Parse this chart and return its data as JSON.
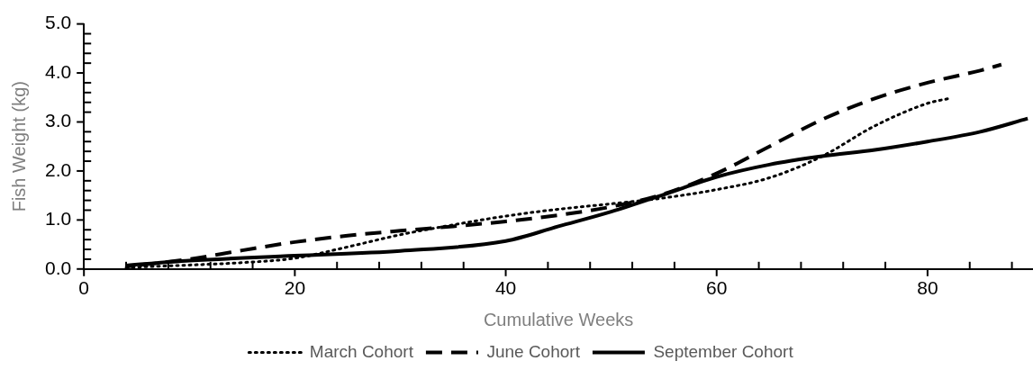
{
  "chart_data": {
    "type": "line",
    "xlabel": "Cumulative Weeks",
    "ylabel": "Fish Weight (kg)",
    "legend": "bottom",
    "grid": false,
    "marker": "none",
    "xlim": [
      0,
      90
    ],
    "ylim": [
      0,
      5
    ],
    "xticks": [
      0,
      {
        "value": 4,
        "label": null
      },
      {
        "value": 8,
        "label": null
      },
      {
        "value": 12,
        "label": null
      },
      {
        "value": 16,
        "label": null
      },
      20,
      {
        "value": 24,
        "label": null
      },
      {
        "value": 28,
        "label": null
      },
      {
        "value": 32,
        "label": null
      },
      {
        "value": 36,
        "label": null
      },
      40,
      {
        "value": 44,
        "label": null
      },
      {
        "value": 48,
        "label": null
      },
      {
        "value": 52,
        "label": null
      },
      {
        "value": 56,
        "label": null
      },
      60,
      {
        "value": 64,
        "label": null
      },
      {
        "value": 68,
        "label": null
      },
      {
        "value": 72,
        "label": null
      },
      {
        "value": 76,
        "label": null
      },
      80,
      {
        "value": 84,
        "label": null
      },
      {
        "value": 88,
        "label": null
      }
    ],
    "yticks": [
      {
        "value": 0,
        "label": "0.0"
      },
      {
        "value": 0.2,
        "label": null
      },
      {
        "value": 0.4,
        "label": null
      },
      {
        "value": 0.6,
        "label": null
      },
      {
        "value": 0.8,
        "label": null
      },
      {
        "value": 1,
        "label": "1.0"
      },
      {
        "value": 1.2,
        "label": null
      },
      {
        "value": 1.4,
        "label": null
      },
      {
        "value": 1.6,
        "label": null
      },
      {
        "value": 1.8,
        "label": null
      },
      {
        "value": 2,
        "label": "2.0"
      },
      {
        "value": 2.2,
        "label": null
      },
      {
        "value": 2.4,
        "label": null
      },
      {
        "value": 2.6,
        "label": null
      },
      {
        "value": 2.8,
        "label": null
      },
      {
        "value": 3,
        "label": "3.0"
      },
      {
        "value": 3.2,
        "label": null
      },
      {
        "value": 3.4,
        "label": null
      },
      {
        "value": 3.6,
        "label": null
      },
      {
        "value": 3.8,
        "label": null
      },
      {
        "value": 4,
        "label": "4.0"
      },
      {
        "value": 4.2,
        "label": null
      },
      {
        "value": 4.4,
        "label": null
      },
      {
        "value": 4.6,
        "label": null
      },
      {
        "value": 4.8,
        "label": null
      },
      {
        "value": 5,
        "label": "5.0"
      }
    ],
    "series": [
      {
        "name": "March Cohort",
        "color": "#000000",
        "line_style": "dotted",
        "x": [
          4,
          10,
          15,
          20,
          25,
          30,
          35,
          40,
          45,
          50,
          55,
          60,
          65,
          70,
          75,
          80,
          82.3
        ],
        "values": [
          0.03,
          0.08,
          0.13,
          0.22,
          0.45,
          0.7,
          0.9,
          1.08,
          1.22,
          1.33,
          1.45,
          1.62,
          1.86,
          2.3,
          2.92,
          3.38,
          3.49
        ]
      },
      {
        "name": "June Cohort",
        "color": "#000000",
        "line_style": "dashed",
        "x": [
          4,
          10,
          15,
          20,
          25,
          30,
          35,
          40,
          45,
          50,
          55,
          60,
          65,
          70,
          75,
          80,
          85,
          87
        ],
        "values": [
          0.05,
          0.2,
          0.38,
          0.55,
          0.68,
          0.78,
          0.87,
          0.97,
          1.1,
          1.27,
          1.53,
          1.95,
          2.5,
          3.05,
          3.48,
          3.8,
          4.05,
          4.17
        ]
      },
      {
        "name": "September Cohort",
        "color": "#000000",
        "line_style": "solid",
        "x": [
          4,
          10,
          20,
          30,
          40,
          45,
          50,
          55,
          60,
          65,
          70,
          75,
          80,
          85,
          89.5
        ],
        "values": [
          0.07,
          0.17,
          0.27,
          0.37,
          0.57,
          0.87,
          1.17,
          1.52,
          1.88,
          2.13,
          2.3,
          2.43,
          2.6,
          2.8,
          3.07
        ]
      }
    ]
  }
}
